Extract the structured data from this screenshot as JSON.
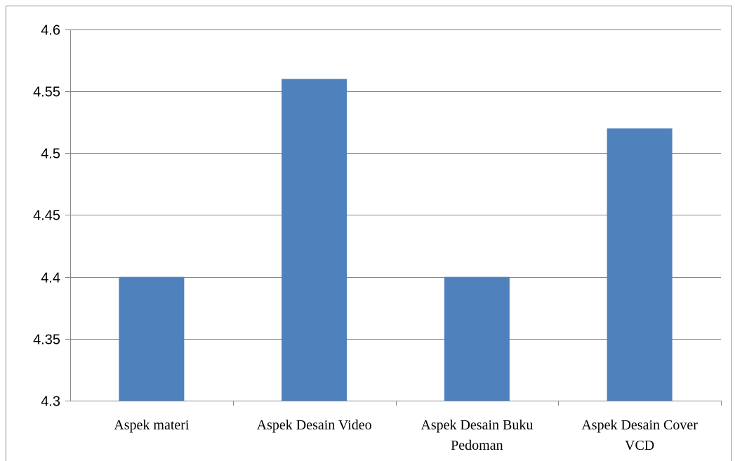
{
  "chart_data": {
    "type": "bar",
    "categories": [
      [
        "Aspek materi"
      ],
      [
        "Aspek Desain Video"
      ],
      [
        "Aspek Desain Buku",
        "Pedoman"
      ],
      [
        "Aspek Desain Cover",
        "VCD"
      ]
    ],
    "values": [
      4.4,
      4.56,
      4.4,
      4.52
    ],
    "ylim": [
      4.3,
      4.6
    ],
    "yticks": [
      "4.3",
      "4.35",
      "4.4",
      "4.45",
      "4.5",
      "4.55",
      "4.6"
    ],
    "title": "",
    "xlabel": "",
    "ylabel": "",
    "grid": true,
    "legend": "none",
    "colors": {
      "bar": "#4f81bd",
      "grid": "#878787",
      "axis": "#878787"
    }
  }
}
